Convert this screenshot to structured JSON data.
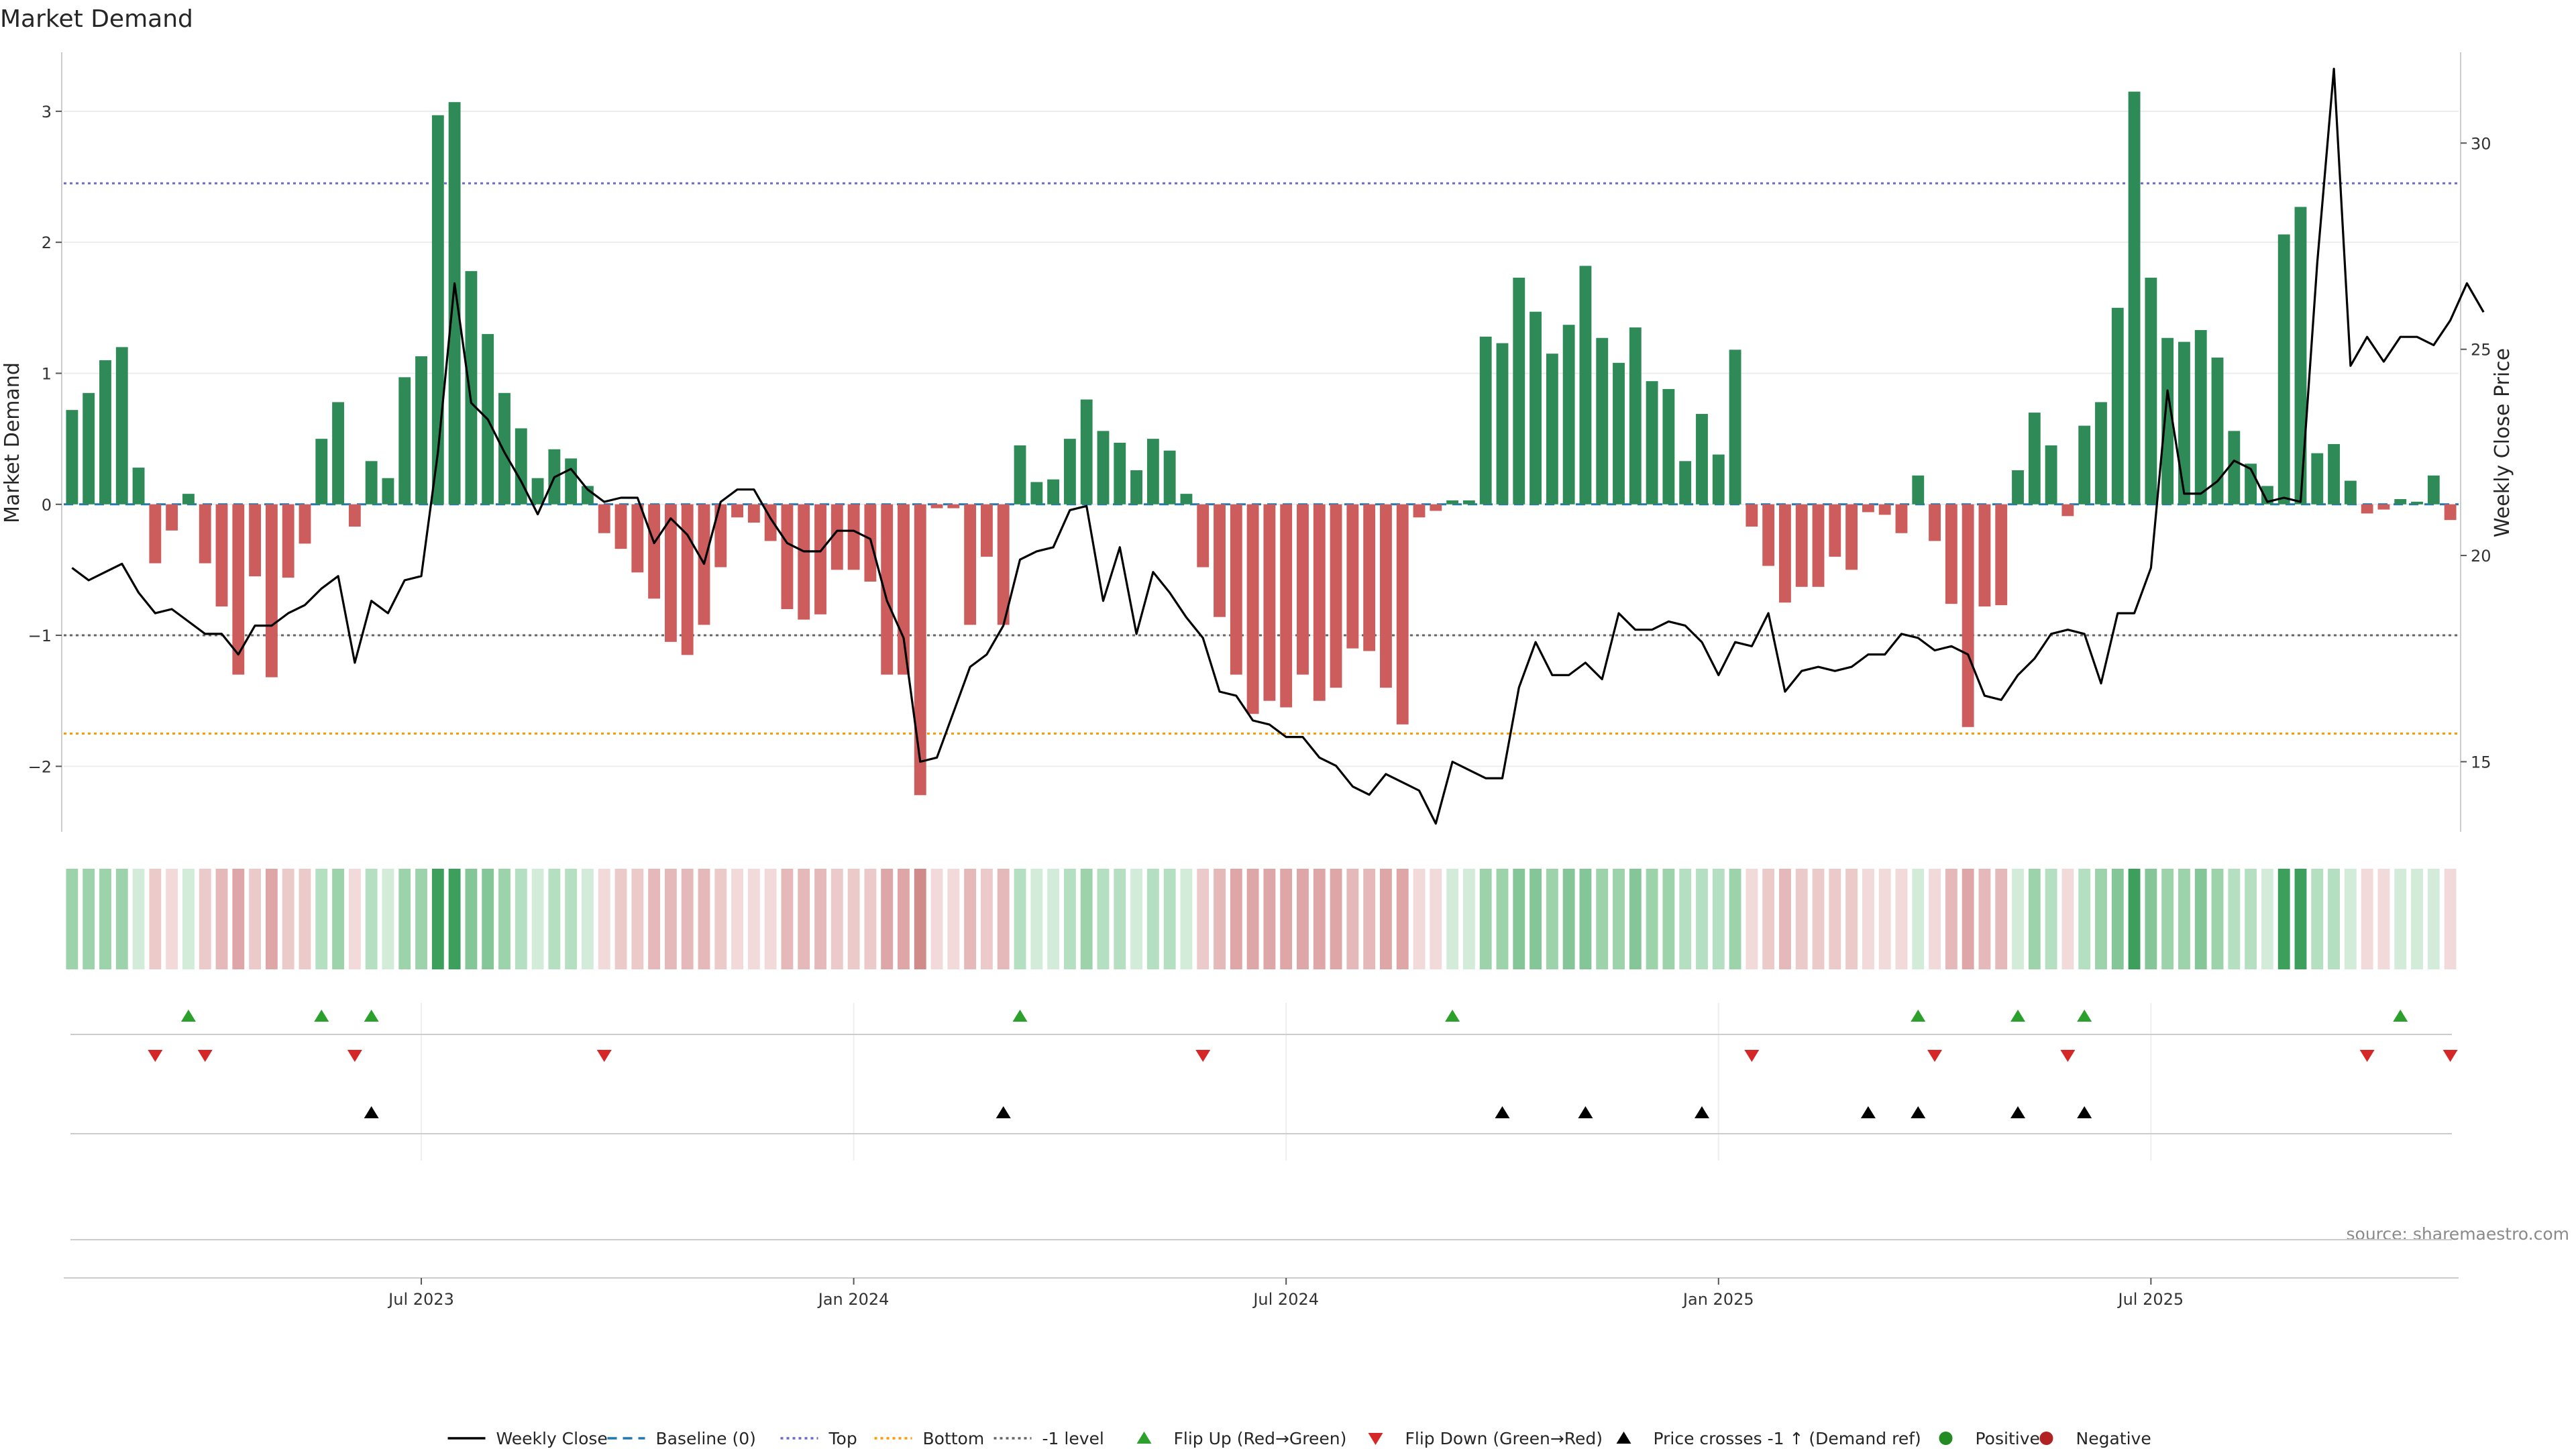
{
  "chart_data": {
    "type": "bar",
    "title": "Market Demand",
    "ylabel": "Market Demand",
    "y2label": "Weekly Close Price",
    "ylim": [
      -2.5,
      3.45
    ],
    "y2lim": [
      13.3,
      32.2
    ],
    "yticks": [
      3,
      2,
      1,
      0,
      -1,
      -2
    ],
    "yticklabels": [
      "3",
      "2",
      "1",
      "0",
      "−1",
      "−2"
    ],
    "y2ticks": [
      30,
      25,
      20,
      15
    ],
    "y2ticklabels": [
      "30",
      "25",
      "20",
      "15"
    ],
    "reference_lines": {
      "top": 2.45,
      "bottom": -1.75,
      "minus_one": -1,
      "baseline": 0
    },
    "colors": {
      "positive": "#2e8b57",
      "negative": "#cd5c5c",
      "price": "#000000",
      "top": "#6a6ac8",
      "bottom": "#ff9900",
      "minus_one": "#666666",
      "baseline": "#1f77b4",
      "flip_up": "#2ca02c",
      "flip_down": "#d62728",
      "cross": "#000000",
      "dot_positive": "#228b22",
      "dot_negative": "#b22222"
    },
    "x_labels": [
      {
        "week": 21,
        "label": "Jul 2023"
      },
      {
        "week": 47,
        "label": "Jan 2024"
      },
      {
        "week": 73,
        "label": "Jul 2024"
      },
      {
        "week": 99,
        "label": "Jan 2025"
      },
      {
        "week": 125,
        "label": "Jul 2025"
      }
    ],
    "demand": [
      0.72,
      0.85,
      1.1,
      1.2,
      0.28,
      -0.45,
      -0.2,
      0.08,
      -0.45,
      -0.78,
      -1.3,
      -0.55,
      -1.32,
      -0.56,
      -0.3,
      0.5,
      0.78,
      -0.17,
      0.33,
      0.2,
      0.97,
      1.13,
      2.97,
      3.07,
      1.78,
      1.3,
      0.85,
      0.58,
      0.2,
      0.42,
      0.35,
      0.14,
      -0.22,
      -0.34,
      -0.52,
      -0.72,
      -1.05,
      -1.15,
      -0.92,
      -0.48,
      -0.1,
      -0.14,
      -0.28,
      -0.8,
      -0.88,
      -0.84,
      -0.5,
      -0.5,
      -0.59,
      -1.3,
      -1.3,
      -2.22,
      -0.03,
      -0.03,
      -0.92,
      -0.4,
      -0.92,
      0.45,
      0.17,
      0.19,
      0.5,
      0.8,
      0.56,
      0.47,
      0.26,
      0.5,
      0.41,
      0.08,
      -0.48,
      -0.86,
      -1.3,
      -1.6,
      -1.5,
      -1.55,
      -1.3,
      -1.5,
      -1.4,
      -1.1,
      -1.12,
      -1.4,
      -1.68,
      -0.1,
      -0.05,
      0.03,
      0.03,
      1.28,
      1.23,
      1.73,
      1.47,
      1.15,
      1.37,
      1.82,
      1.27,
      1.08,
      1.35,
      0.94,
      0.88,
      0.33,
      0.69,
      0.38,
      1.18,
      -0.17,
      -0.47,
      -0.75,
      -0.63,
      -0.63,
      -0.4,
      -0.5,
      -0.06,
      -0.08,
      -0.22,
      0.22,
      -0.28,
      -0.76,
      -1.7,
      -0.78,
      -0.77,
      0.26,
      0.7,
      0.45,
      -0.09,
      0.6,
      0.78,
      1.5,
      3.15,
      1.73,
      1.27,
      1.24,
      1.33,
      1.12,
      0.56,
      0.31,
      0.14,
      2.06,
      2.27,
      0.39,
      0.46,
      0.18,
      -0.07,
      -0.04,
      0.04,
      0.02,
      0.22,
      -0.12
    ],
    "price": [
      19.7,
      19.4,
      19.6,
      19.8,
      19.1,
      18.6,
      18.7,
      18.4,
      18.1,
      18.1,
      17.6,
      18.3,
      18.3,
      18.6,
      18.8,
      19.2,
      19.5,
      17.4,
      18.9,
      18.6,
      19.4,
      19.5,
      22.5,
      26.6,
      23.7,
      23.3,
      22.5,
      21.8,
      21.0,
      21.9,
      22.1,
      21.6,
      21.3,
      21.4,
      21.4,
      20.3,
      20.9,
      20.5,
      19.8,
      21.3,
      21.6,
      21.6,
      20.9,
      20.3,
      20.1,
      20.1,
      20.6,
      20.6,
      20.4,
      18.9,
      18.0,
      15.0,
      15.1,
      16.2,
      17.3,
      17.6,
      18.3,
      19.9,
      20.1,
      20.2,
      21.1,
      21.2,
      18.9,
      20.2,
      18.1,
      19.6,
      19.1,
      18.5,
      18.0,
      16.7,
      16.6,
      16.0,
      15.9,
      15.6,
      15.6,
      15.1,
      14.9,
      14.4,
      14.2,
      14.7,
      14.5,
      14.3,
      13.5,
      15.0,
      14.8,
      14.6,
      14.6,
      16.8,
      17.9,
      17.1,
      17.1,
      17.4,
      17.0,
      18.6,
      18.2,
      18.2,
      18.4,
      18.3,
      17.9,
      17.1,
      17.9,
      17.8,
      18.6,
      16.7,
      17.2,
      17.3,
      17.2,
      17.3,
      17.6,
      17.6,
      18.1,
      18.0,
      17.7,
      17.8,
      17.6,
      16.6,
      16.5,
      17.1,
      17.5,
      18.1,
      18.2,
      18.1,
      16.9,
      18.6,
      18.6,
      19.7,
      24.0,
      21.5,
      21.5,
      21.8,
      22.3,
      22.1,
      21.3,
      21.4,
      21.3,
      27.1,
      31.8,
      24.6,
      25.3,
      24.7,
      25.3,
      25.3,
      25.1,
      25.7,
      26.6,
      25.9
    ],
    "flip_up_weeks": [
      7,
      15,
      18,
      57,
      83,
      111,
      117,
      121,
      140
    ],
    "flip_down_weeks": [
      5,
      8,
      17,
      32,
      68,
      101,
      112,
      120,
      138,
      143
    ],
    "price_cross_weeks": [
      18,
      56,
      86,
      91,
      98,
      108,
      111,
      117,
      121
    ],
    "legend": [
      {
        "key": "price",
        "label": "Weekly Close"
      },
      {
        "key": "baseline",
        "label": "Baseline (0)"
      },
      {
        "key": "top",
        "label": "Top"
      },
      {
        "key": "bottom",
        "label": "Bottom"
      },
      {
        "key": "minus_one",
        "label": "-1 level"
      },
      {
        "key": "flip_up",
        "label": "Flip Up (Red→Green)"
      },
      {
        "key": "flip_down",
        "label": "Flip Down (Green→Red)"
      },
      {
        "key": "cross",
        "label": "Price crosses -1 ↑ (Demand ref)"
      },
      {
        "key": "dot_positive",
        "label": "Positive"
      },
      {
        "key": "dot_negative",
        "label": "Negative"
      }
    ],
    "source_text": "source: sharemaestro.com"
  }
}
